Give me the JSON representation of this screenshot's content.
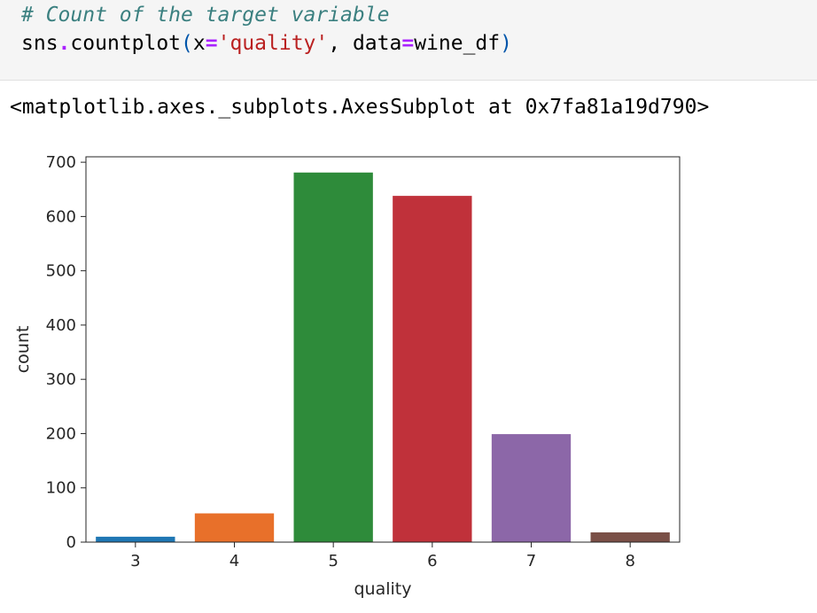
{
  "code": {
    "comment": "# Count of the target variable",
    "call": {
      "func_obj": "sns",
      "dot": ".",
      "func": "countplot",
      "open": "(",
      "arg1_name": "x",
      "eq1": "=",
      "arg1_value": "'quality'",
      "comma": ", ",
      "arg2_name": "data",
      "eq2": "=",
      "arg2_value": "wine_df",
      "close": ")"
    }
  },
  "output": "<matplotlib.axes._subplots.AxesSubplot at 0x7fa81a19d790>",
  "chart_data": {
    "type": "bar",
    "categories": [
      "3",
      "4",
      "5",
      "6",
      "7",
      "8"
    ],
    "values": [
      10,
      53,
      681,
      638,
      199,
      18
    ],
    "colors": [
      "#1f77b4",
      "#e8702a",
      "#2e8b3a",
      "#c0313a",
      "#8c67a8",
      "#7a4f46"
    ],
    "xlabel": "quality",
    "ylabel": "count",
    "ylim": [
      0,
      710
    ],
    "yticks": [
      0,
      100,
      200,
      300,
      400,
      500,
      600,
      700
    ],
    "grid": false
  }
}
